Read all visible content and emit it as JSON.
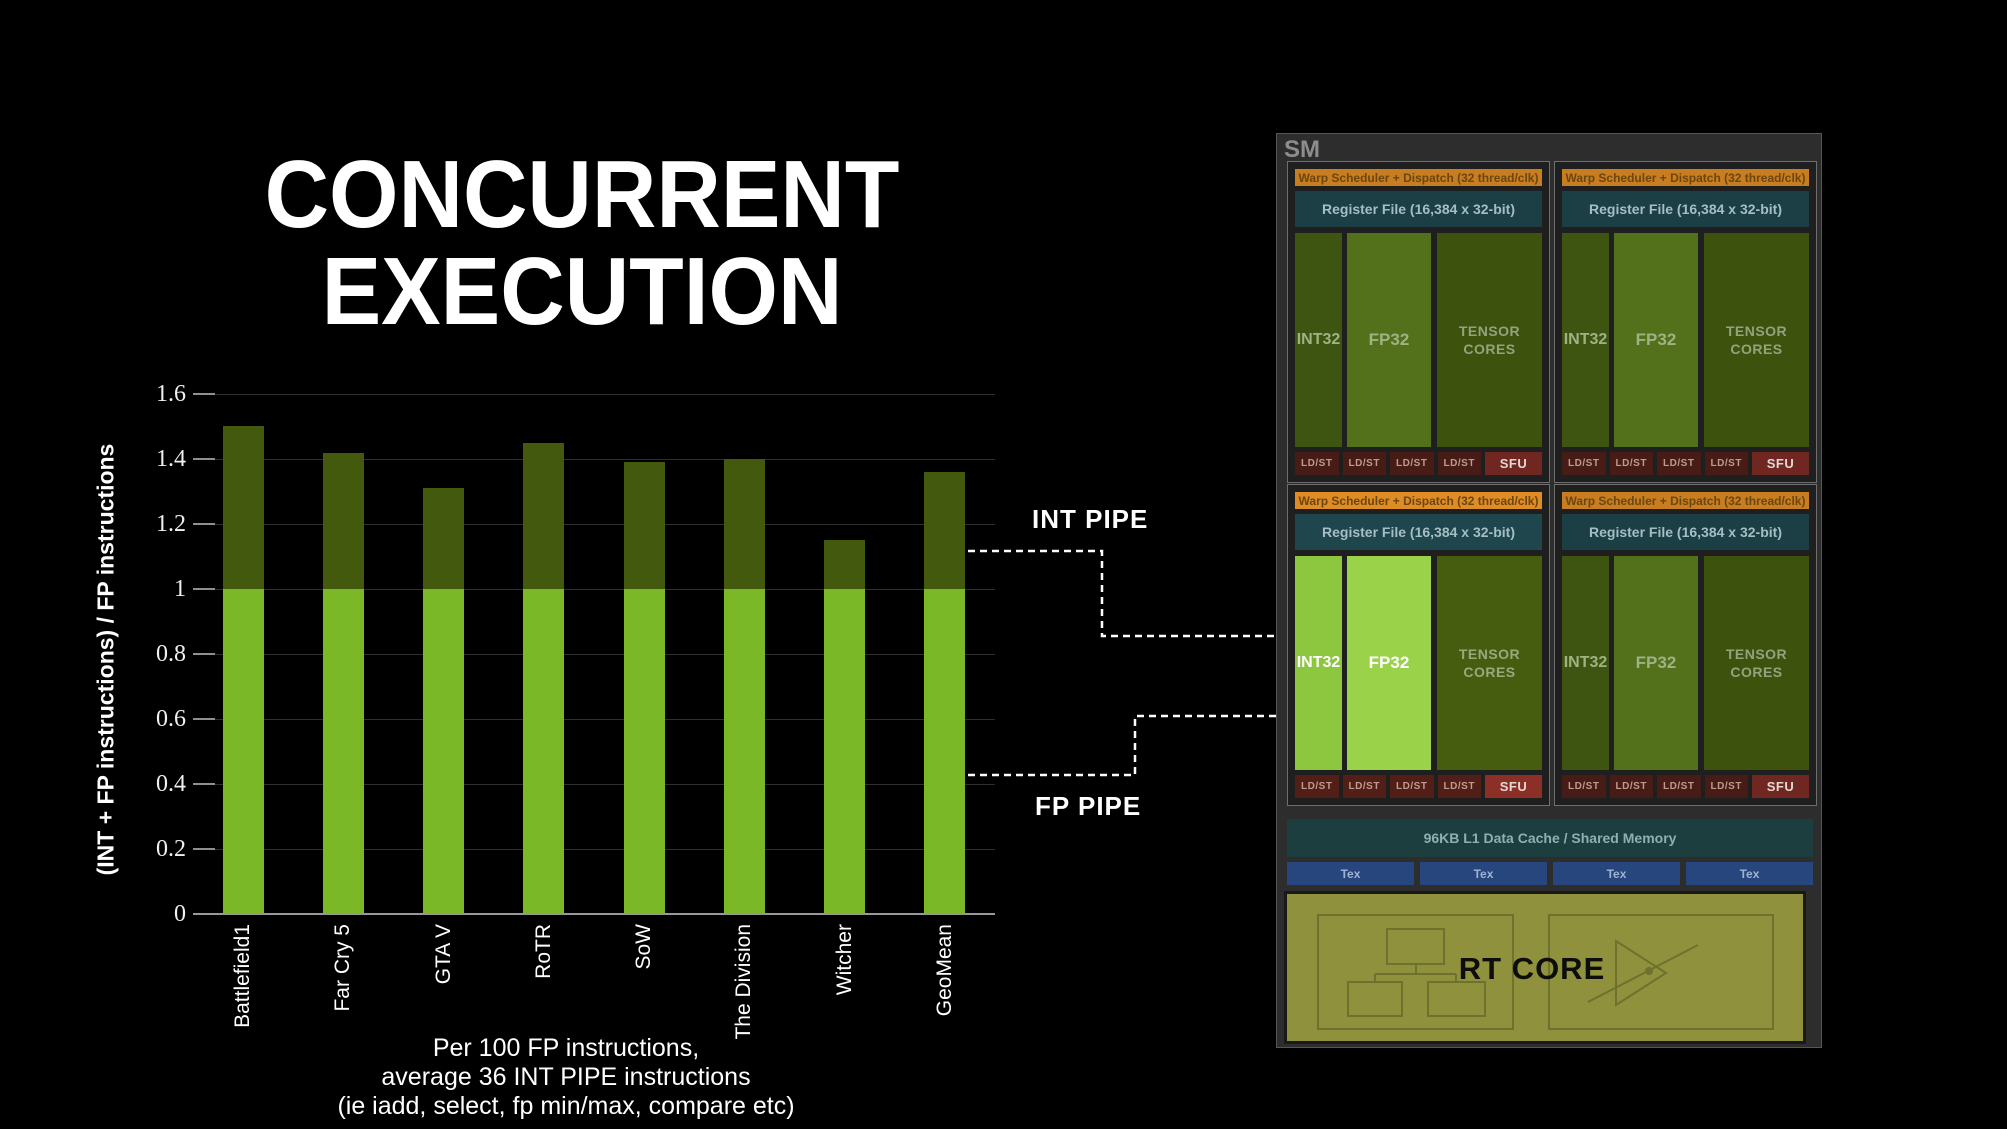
{
  "title": {
    "line1": "CONCURRENT",
    "line2": "EXECUTION"
  },
  "chart_data": {
    "type": "bar",
    "stacked": true,
    "categories": [
      "Battlefield1",
      "Far Cry 5",
      "GTA V",
      "RoTR",
      "SoW",
      "The Division",
      "Witcher",
      "GeoMean"
    ],
    "values": [
      1.5,
      1.42,
      1.31,
      1.45,
      1.39,
      1.4,
      1.15,
      1.36
    ],
    "base_segment_value": 1.0,
    "series_note": "green segment = FP pipe baseline (0 to 1.0), dark olive segment = additional INT pipe work (1.0 to value)",
    "ylabel": "(INT + FP instructions) / FP instructions",
    "yticks": [
      0,
      0.2,
      0.4,
      0.6,
      0.8,
      1.0,
      1.2,
      1.4,
      1.6
    ],
    "ytick_labels": [
      "0",
      "0.2",
      "0.4",
      "0.6",
      "0.8",
      "1",
      "1.2",
      "1.4",
      "1.6"
    ],
    "ylim": [
      0,
      1.6
    ],
    "grid": true,
    "colors": {
      "bar_lower": "#7bb827",
      "bar_upper": "#42590e",
      "gridline": "#2e2e2e",
      "axis": "#989898"
    },
    "annotations": {
      "int_pipe": "INT PIPE",
      "fp_pipe": "FP PIPE"
    },
    "caption": [
      "Per 100 FP instructions,",
      "average 36 INT PIPE instructions",
      "(ie iadd, select, fp min/max, compare etc)"
    ]
  },
  "sm": {
    "label": "SM",
    "warp_label": "Warp Scheduler + Dispatch (32 thread/clk)",
    "register_label": "Register File (16,384 x 32-bit)",
    "int32_label": "INT32",
    "fp32_label": "FP32",
    "tensor_label": "TENSOR CORES",
    "ldst_label": "LD/ST",
    "sfu_label": "SFU",
    "l1_label": "96KB L1 Data Cache / Shared Memory",
    "tex_label": "Tex",
    "tex_count": 4,
    "rt_label": "RT CORE",
    "quadrants": [
      {
        "highlighted": false
      },
      {
        "highlighted": false
      },
      {
        "highlighted": true
      },
      {
        "highlighted": false
      }
    ],
    "colors": {
      "warp_dim": "#c77d20",
      "warp_hl": "#e08c26",
      "warp_text": "#6b460f",
      "register_dim": "#1b3f44",
      "register_hl": "#1e464c",
      "register_text": "#a4bec4",
      "int32_dim": "#3d5511",
      "int32_hl": "#8dc63f",
      "fp32_dim": "#53701b",
      "fp32_hl": "#9ad24a",
      "tensor_dim": "#3d520d",
      "tensor_hl": "#465c0e",
      "core_text_dim": "#9fb284",
      "core_text_hl": "#ffffff",
      "tensor_text_dim": "#93a37d",
      "tensor_text_hl": "#9aa87f",
      "ldst_dim": "#471c16",
      "ldst_hl": "#521f18",
      "ldst_text": "#bf9b8f",
      "sfu_dim": "#702721",
      "sfu_hl": "#8c2f26",
      "sfu_text": "#e3d7d4"
    }
  }
}
